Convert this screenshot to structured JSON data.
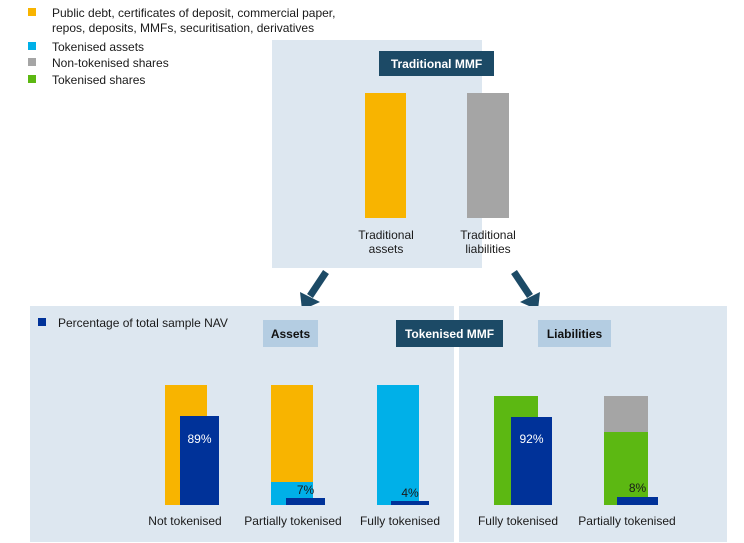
{
  "legend": {
    "items": [
      {
        "label_line1": "Public debt, certificates of deposit, commercial paper,",
        "label_line2": "repos, deposits, MMFs, securitisation, derivatives",
        "color": "#f8b400"
      },
      {
        "label_line1": "Tokenised assets",
        "color": "#00b0e8"
      },
      {
        "label_line1": "Non-tokenised shares",
        "color": "#a5a5a5"
      },
      {
        "label_line1": "Tokenised shares",
        "color": "#5cb812"
      }
    ],
    "nav_label": "Percentage of total sample NAV",
    "nav_color": "#003299"
  },
  "traditional": {
    "title": "Traditional MMF",
    "assets_label_line1": "Traditional",
    "assets_label_line2": "assets",
    "liabilities_label_line1": "Traditional",
    "liabilities_label_line2": "liabilities"
  },
  "tokenised": {
    "title": "Tokenised MMF",
    "assets_title": "Assets",
    "liabilities_title": "Liabilities"
  },
  "chart_data": {
    "type": "bar",
    "assets": {
      "categories": [
        "Not tokenised",
        "Partially tokenised",
        "Fully tokenised"
      ],
      "nav_pct": [
        89,
        7,
        4
      ],
      "nav_labels": [
        "89%",
        "7%",
        "4%"
      ],
      "tokenised_share": [
        0,
        0.2,
        1
      ]
    },
    "liabilities": {
      "categories": [
        "Fully tokenised",
        "Partially tokenised"
      ],
      "nav_pct": [
        92,
        8
      ],
      "nav_labels": [
        "92%",
        "8%"
      ],
      "tokenised_share": [
        1,
        0.66
      ]
    }
  },
  "colors": {
    "traditional_asset": "#f8b400",
    "tokenised_asset": "#00b0e8",
    "non_tokenised_share": "#a5a5a5",
    "tokenised_share": "#5cb812",
    "nav": "#003299",
    "panel": "#dde7f0",
    "title_box": "#1c4a66",
    "sub_box": "#b4cde2",
    "arrow": "#1c4a66"
  }
}
